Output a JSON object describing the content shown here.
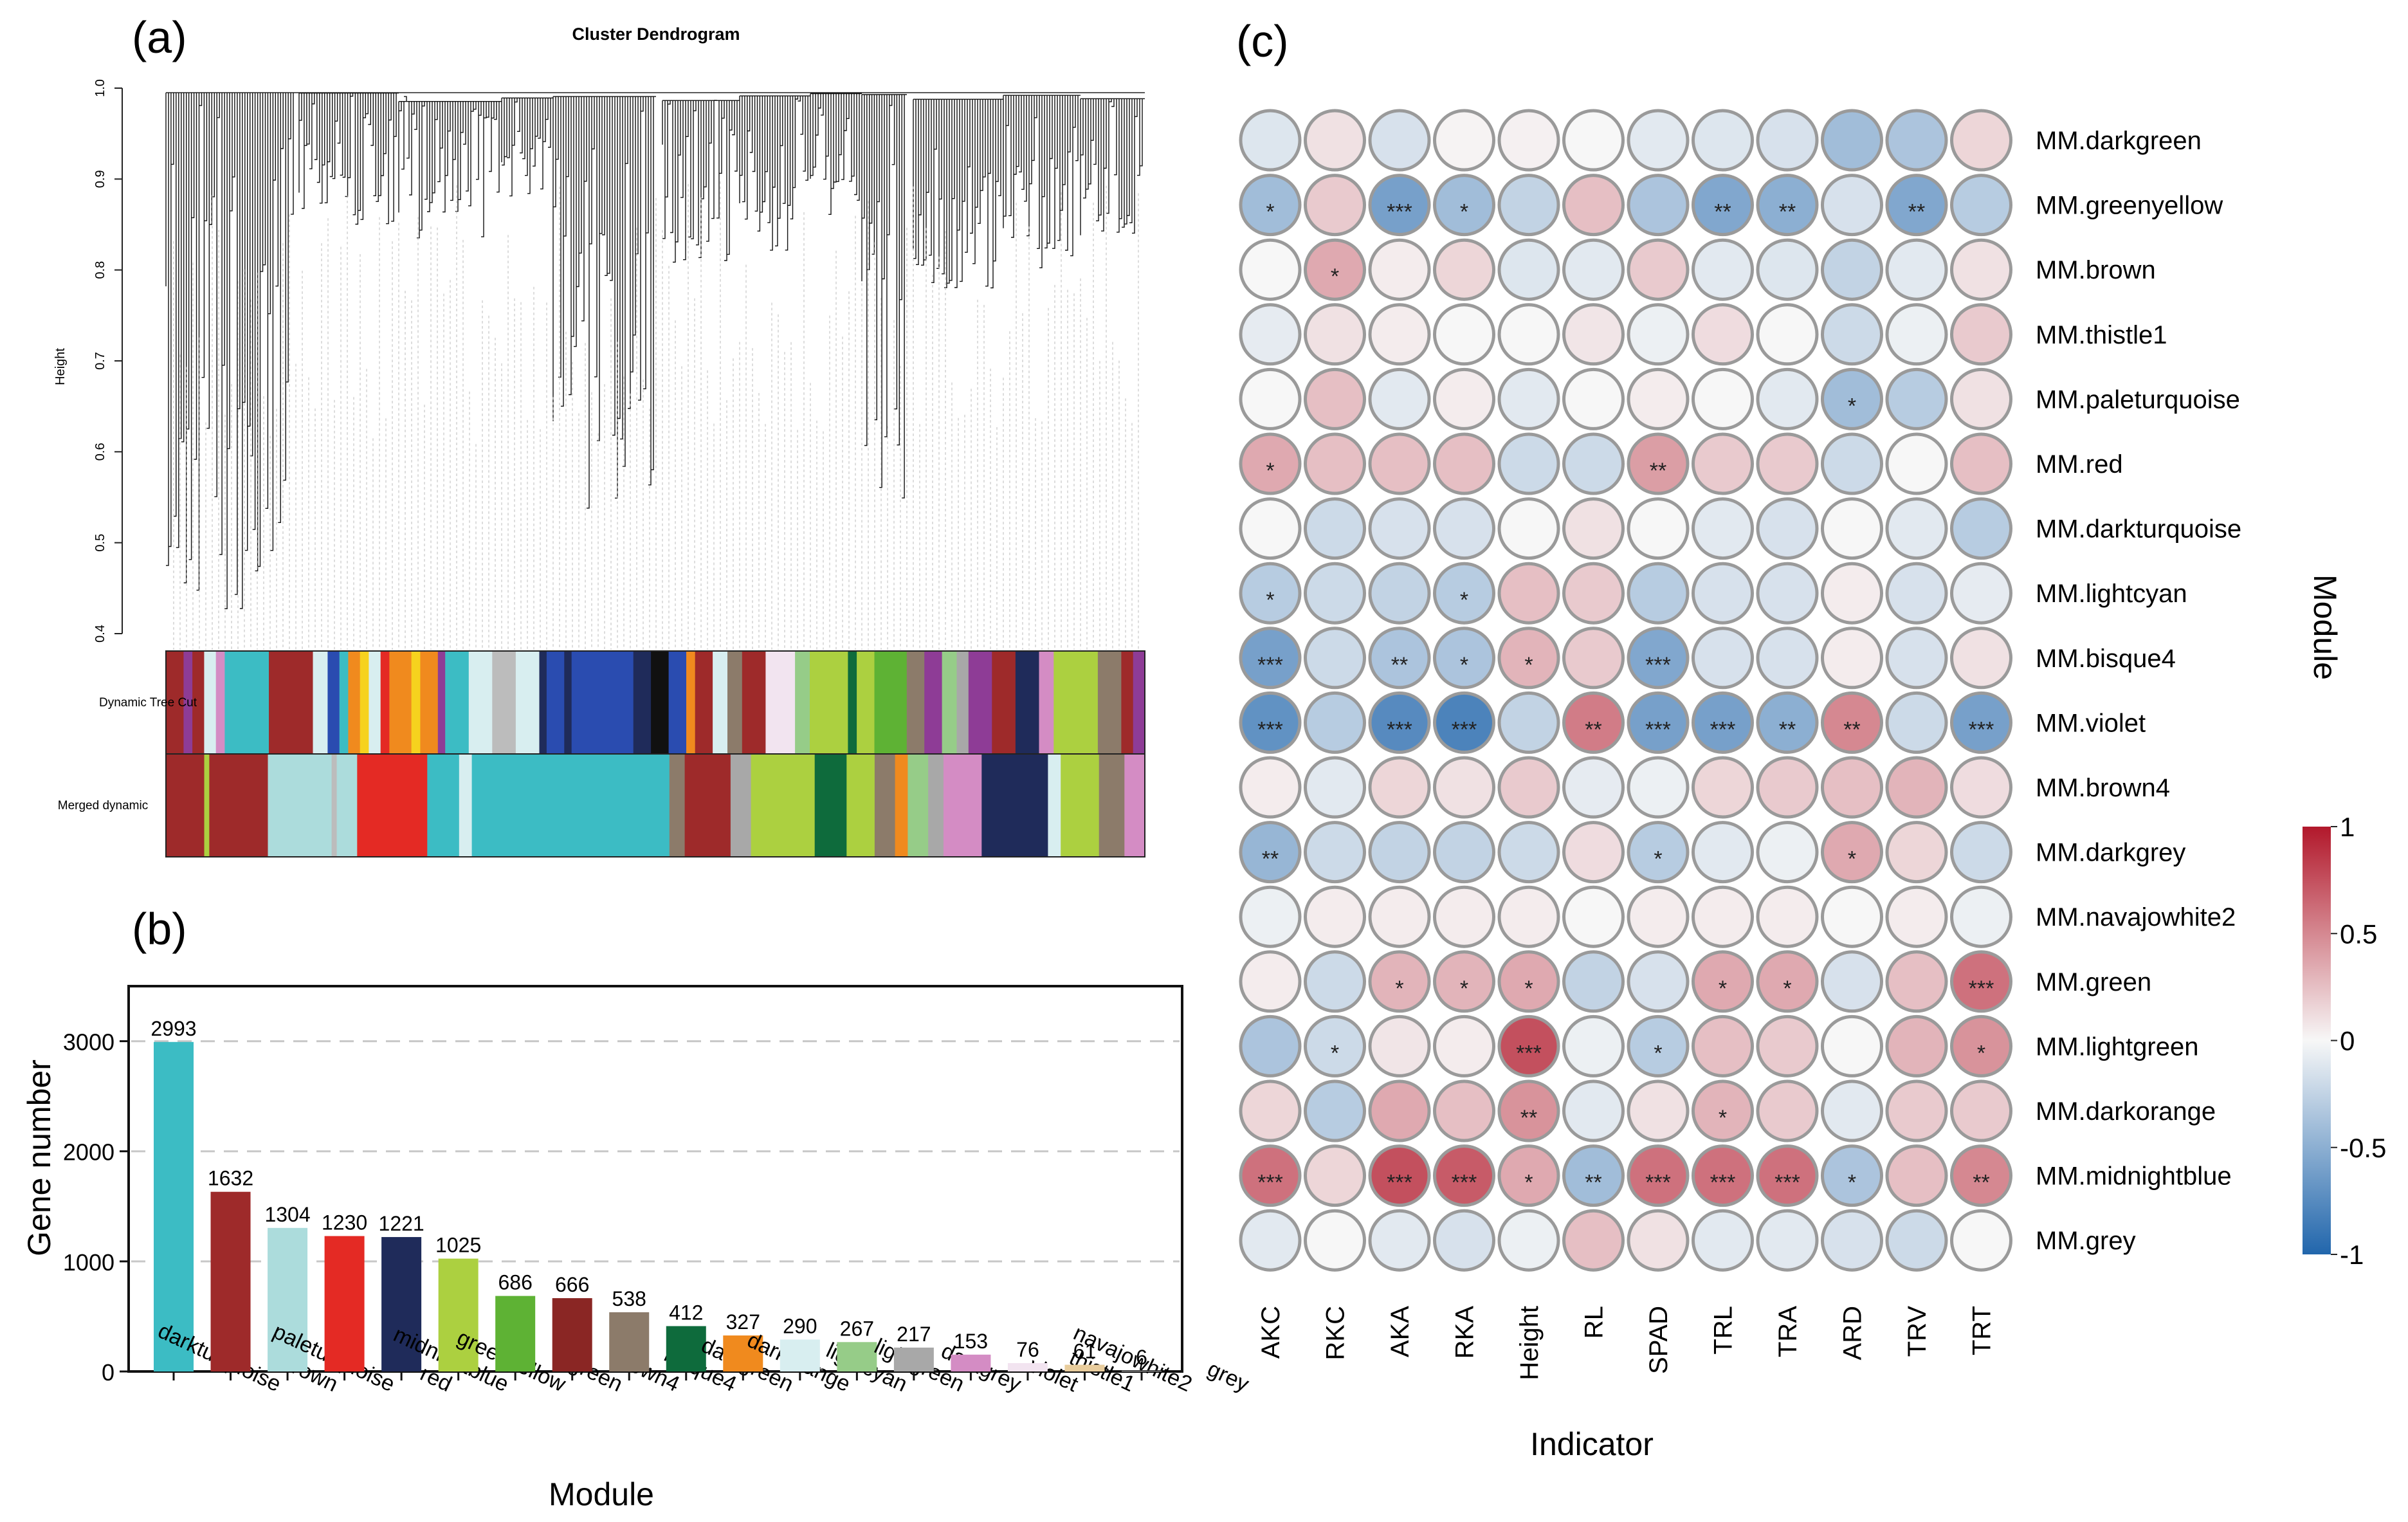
{
  "panel_labels": {
    "a": "(a)",
    "b": "(b)",
    "c": "(c)"
  },
  "colors": {
    "darkturquoise": "#3cbcc4",
    "brown": "#9e2a2a",
    "paleturquoise": "#acdcdc",
    "red": "#e42a24",
    "midnightblue": "#1f2b5a",
    "greenyellow": "#acd040",
    "green": "#5eb234",
    "brown4": "#8a2624",
    "bisque4": "#8c7b6a",
    "darkgreen": "#0e6b3c",
    "darkorange": "#f08a1e",
    "lightcyan": "#d8eef0",
    "lightgreen": "#96cc88",
    "darkgrey": "#a8a8a8",
    "violet": "#d48cc4",
    "thistle1": "#f2e4f0",
    "navajowhite2": "#e8cc9c",
    "grey": "#bcbcbc",
    "purple": "#8e3c96",
    "black": "#111111",
    "yellow": "#f6d21e",
    "blue": "#2a4cb0"
  },
  "chart_data": [
    {
      "id": "a",
      "type": "dendrogram",
      "title": "Cluster Dendrogram",
      "ylabel": "Height",
      "ylim": [
        0.4,
        1.0
      ],
      "yticks": [
        "0.4",
        "0.5",
        "0.6",
        "0.7",
        "0.8",
        "0.9",
        "1.0"
      ],
      "color_bars": [
        "Dynamic Tree Cut",
        "Merged dynamic"
      ],
      "merged_blocks": [
        {
          "module": "brown",
          "w": 3
        },
        {
          "module": "greenyellow",
          "w": 0.4
        },
        {
          "module": "brown",
          "w": 4.6
        },
        {
          "module": "paleturquoise",
          "w": 5
        },
        {
          "module": "grey",
          "w": 0.4
        },
        {
          "module": "paleturquoise",
          "w": 1.6
        },
        {
          "module": "red",
          "w": 5.5
        },
        {
          "module": "darkturquoise",
          "w": 2.5
        },
        {
          "module": "lightcyan",
          "w": 1
        },
        {
          "module": "darkturquoise",
          "w": 15.5
        },
        {
          "module": "bisque4",
          "w": 1.2
        },
        {
          "module": "brown",
          "w": 3.6
        },
        {
          "module": "darkgrey",
          "w": 1.6
        },
        {
          "module": "greenyellow",
          "w": 5
        },
        {
          "module": "darkgreen",
          "w": 2.5
        },
        {
          "module": "greenyellow",
          "w": 2.2
        },
        {
          "module": "bisque4",
          "w": 1.6
        },
        {
          "module": "darkorange",
          "w": 1
        },
        {
          "module": "lightgreen",
          "w": 1.6
        },
        {
          "module": "darkgrey",
          "w": 1.2
        },
        {
          "module": "violet",
          "w": 3
        },
        {
          "module": "midnightblue",
          "w": 5.2
        },
        {
          "module": "lightcyan",
          "w": 1
        },
        {
          "module": "greenyellow",
          "w": 3
        },
        {
          "module": "bisque4",
          "w": 2
        },
        {
          "module": "violet",
          "w": 1.6
        }
      ],
      "dynamic_blocks": [
        {
          "module": "brown",
          "w": 1.2
        },
        {
          "module": "purple",
          "w": 0.6
        },
        {
          "module": "brown",
          "w": 0.8
        },
        {
          "module": "lightcyan",
          "w": 0.8
        },
        {
          "module": "violet",
          "w": 0.6
        },
        {
          "module": "darkturquoise",
          "w": 3
        },
        {
          "module": "brown",
          "w": 3
        },
        {
          "module": "lightcyan",
          "w": 1
        },
        {
          "module": "blue",
          "w": 0.8
        },
        {
          "module": "darkturquoise",
          "w": 0.6
        },
        {
          "module": "darkorange",
          "w": 0.8
        },
        {
          "module": "yellow",
          "w": 0.6
        },
        {
          "module": "lightcyan",
          "w": 0.8
        },
        {
          "module": "red",
          "w": 0.6
        },
        {
          "module": "darkorange",
          "w": 1.5
        },
        {
          "module": "yellow",
          "w": 0.6
        },
        {
          "module": "darkorange",
          "w": 1.2
        },
        {
          "module": "purple",
          "w": 0.5
        },
        {
          "module": "darkturquoise",
          "w": 1.6
        },
        {
          "module": "lightcyan",
          "w": 1.6
        },
        {
          "module": "grey",
          "w": 1.6
        },
        {
          "module": "lightcyan",
          "w": 1.6
        },
        {
          "module": "midnightblue",
          "w": 0.5
        },
        {
          "module": "blue",
          "w": 1.2
        },
        {
          "module": "midnightblue",
          "w": 0.5
        },
        {
          "module": "blue",
          "w": 4.2
        },
        {
          "module": "midnightblue",
          "w": 1.2
        },
        {
          "module": "black",
          "w": 1.2
        },
        {
          "module": "blue",
          "w": 1.2
        },
        {
          "module": "darkorange",
          "w": 0.6
        },
        {
          "module": "brown",
          "w": 1.2
        },
        {
          "module": "lightcyan",
          "w": 1
        },
        {
          "module": "bisque4",
          "w": 1
        },
        {
          "module": "brown",
          "w": 1.6
        },
        {
          "module": "thistle1",
          "w": 2
        },
        {
          "module": "lightgreen",
          "w": 1
        },
        {
          "module": "greenyellow",
          "w": 2.6
        },
        {
          "module": "darkgreen",
          "w": 0.6
        },
        {
          "module": "greenyellow",
          "w": 1.2
        },
        {
          "module": "green",
          "w": 2.2
        },
        {
          "module": "bisque4",
          "w": 1.2
        },
        {
          "module": "purple",
          "w": 1.2
        },
        {
          "module": "lightgreen",
          "w": 1
        },
        {
          "module": "darkgrey",
          "w": 0.8
        },
        {
          "module": "purple",
          "w": 1.6
        },
        {
          "module": "brown",
          "w": 1.6
        },
        {
          "module": "midnightblue",
          "w": 1.6
        },
        {
          "module": "violet",
          "w": 1
        },
        {
          "module": "greenyellow",
          "w": 3
        },
        {
          "module": "bisque4",
          "w": 1.6
        },
        {
          "module": "brown",
          "w": 0.8
        },
        {
          "module": "purple",
          "w": 0.8
        }
      ]
    },
    {
      "id": "b",
      "type": "bar",
      "xlabel": "Module",
      "ylabel": "Gene number",
      "ylim": [
        0,
        3500
      ],
      "yticks": [
        0,
        1000,
        2000,
        3000
      ],
      "categories": [
        "darkturquoise",
        "brown",
        "paleturquoise",
        "red",
        "midnightblue",
        "greenyellow",
        "green",
        "brown4",
        "bisque4",
        "darkgreen",
        "darkorange",
        "lightcyan",
        "lightgreen",
        "darkgrey",
        "violet",
        "thistle1",
        "navajowhite2",
        "grey"
      ],
      "values": [
        2993,
        1632,
        1304,
        1230,
        1221,
        1025,
        686,
        666,
        538,
        412,
        327,
        290,
        267,
        217,
        153,
        76,
        61,
        6
      ],
      "value_labels": [
        "2993",
        "1632",
        "1304",
        "1230",
        "1221",
        "1025",
        "686",
        "666",
        "538",
        "412",
        "327",
        "290",
        "267",
        "217",
        "153",
        "76",
        "61",
        "6"
      ]
    },
    {
      "id": "c",
      "type": "heatmap",
      "xlabel": "Indicator",
      "ylabel": "Module",
      "columns": [
        "AKC",
        "RKC",
        "AKA",
        "RKA",
        "Height",
        "RL",
        "SPAD",
        "TRL",
        "TRA",
        "ARD",
        "TRV",
        "TRT"
      ],
      "rows": [
        "MM.darkgreen",
        "MM.greenyellow",
        "MM.brown",
        "MM.thistle1",
        "MM.paleturquoise",
        "MM.red",
        "MM.darkturquoise",
        "MM.lightcyan",
        "MM.bisque4",
        "MM.violet",
        "MM.brown4",
        "MM.darkgrey",
        "MM.navajowhite2",
        "MM.green",
        "MM.lightgreen",
        "MM.darkorange",
        "MM.midnightblue",
        "MM.grey"
      ],
      "values": [
        [
          -0.12,
          0.1,
          -0.15,
          0.02,
          0.03,
          0.0,
          -0.1,
          -0.12,
          -0.15,
          -0.4,
          -0.35,
          0.15
        ],
        [
          -0.4,
          0.2,
          -0.6,
          -0.4,
          -0.25,
          0.25,
          -0.35,
          -0.55,
          -0.5,
          -0.15,
          -0.55,
          -0.3
        ],
        [
          0.0,
          0.35,
          0.05,
          0.15,
          -0.12,
          -0.1,
          0.2,
          -0.1,
          -0.12,
          -0.25,
          -0.1,
          0.1
        ],
        [
          -0.08,
          0.1,
          0.05,
          0.0,
          0.0,
          0.08,
          -0.05,
          0.12,
          0.0,
          -0.2,
          -0.05,
          0.2
        ],
        [
          0.0,
          0.25,
          -0.1,
          0.05,
          -0.1,
          0.0,
          0.05,
          0.0,
          -0.1,
          -0.4,
          -0.3,
          0.1
        ],
        [
          0.35,
          0.25,
          0.25,
          0.25,
          -0.2,
          -0.2,
          0.4,
          0.2,
          0.2,
          -0.2,
          0.0,
          0.25
        ],
        [
          0.0,
          -0.2,
          -0.15,
          -0.15,
          0.0,
          0.1,
          0.0,
          -0.1,
          -0.15,
          0.0,
          -0.1,
          -0.3
        ],
        [
          -0.3,
          -0.2,
          -0.25,
          -0.3,
          0.25,
          0.2,
          -0.3,
          -0.15,
          -0.15,
          0.05,
          -0.15,
          -0.08
        ],
        [
          -0.6,
          -0.2,
          -0.35,
          -0.35,
          0.3,
          0.2,
          -0.55,
          -0.15,
          -0.15,
          0.05,
          -0.15,
          0.1
        ],
        [
          -0.7,
          -0.3,
          -0.75,
          -0.8,
          -0.25,
          0.55,
          -0.6,
          -0.6,
          -0.5,
          0.5,
          -0.2,
          -0.6
        ],
        [
          0.05,
          -0.1,
          0.15,
          0.1,
          0.2,
          -0.08,
          -0.05,
          0.15,
          0.2,
          0.25,
          0.3,
          0.12
        ],
        [
          -0.45,
          -0.2,
          -0.25,
          -0.25,
          -0.2,
          0.12,
          -0.3,
          -0.1,
          -0.05,
          0.35,
          0.15,
          -0.2
        ],
        [
          -0.05,
          0.05,
          0.05,
          0.05,
          0.05,
          0.0,
          0.05,
          0.05,
          0.05,
          0.0,
          0.05,
          -0.05
        ],
        [
          0.05,
          -0.2,
          0.3,
          0.3,
          0.35,
          -0.25,
          -0.15,
          0.35,
          0.35,
          -0.15,
          0.25,
          0.6
        ],
        [
          -0.35,
          -0.2,
          0.08,
          0.05,
          0.75,
          -0.05,
          -0.3,
          0.25,
          0.2,
          0.0,
          0.3,
          0.45
        ],
        [
          0.15,
          -0.3,
          0.35,
          0.25,
          0.45,
          -0.1,
          0.1,
          0.3,
          0.2,
          -0.1,
          0.2,
          0.2
        ],
        [
          0.6,
          0.15,
          0.75,
          0.7,
          0.35,
          -0.4,
          0.6,
          0.6,
          0.6,
          -0.35,
          0.25,
          0.5
        ],
        [
          -0.1,
          0.0,
          -0.1,
          -0.15,
          -0.05,
          0.25,
          0.1,
          -0.1,
          -0.1,
          -0.15,
          -0.2,
          0.0
        ]
      ],
      "significance": [
        [
          "",
          "",
          "",
          "",
          "",
          "",
          "",
          "",
          "",
          "",
          "",
          ""
        ],
        [
          "*",
          "",
          "***",
          "*",
          "",
          "",
          "",
          "**",
          "**",
          "",
          "**",
          ""
        ],
        [
          "",
          "*",
          "",
          "",
          "",
          "",
          "",
          "",
          "",
          "",
          "",
          ""
        ],
        [
          "",
          "",
          "",
          "",
          "",
          "",
          "",
          "",
          "",
          "",
          "",
          ""
        ],
        [
          "",
          "",
          "",
          "",
          "",
          "",
          "",
          "",
          "",
          "*",
          "",
          ""
        ],
        [
          "*",
          "",
          "",
          "",
          "",
          "",
          "**",
          "",
          "",
          "",
          "",
          ""
        ],
        [
          "",
          "",
          "",
          "",
          "",
          "",
          "",
          "",
          "",
          "",
          "",
          ""
        ],
        [
          "*",
          "",
          "",
          "*",
          "",
          "",
          "",
          "",
          "",
          "",
          "",
          ""
        ],
        [
          "***",
          "",
          "**",
          "*",
          "*",
          "",
          "***",
          "",
          "",
          "",
          "",
          ""
        ],
        [
          "***",
          "",
          "***",
          "***",
          "",
          "**",
          "***",
          "***",
          "**",
          "**",
          "",
          "***"
        ],
        [
          "",
          "",
          "",
          "",
          "",
          "",
          "",
          "",
          "",
          "",
          "",
          ""
        ],
        [
          "**",
          "",
          "",
          "",
          "",
          "",
          "*",
          "",
          "",
          "*",
          "",
          ""
        ],
        [
          "",
          "",
          "",
          "",
          "",
          "",
          "",
          "",
          "",
          "",
          "",
          ""
        ],
        [
          "",
          "",
          "*",
          "*",
          "*",
          "",
          "",
          "*",
          "*",
          "",
          "",
          "***"
        ],
        [
          "",
          "*",
          "",
          "",
          "***",
          "",
          "*",
          "",
          "",
          "",
          "",
          "*"
        ],
        [
          "",
          "",
          "",
          "",
          "**",
          "",
          "",
          "*",
          "",
          "",
          "",
          ""
        ],
        [
          "***",
          "",
          "***",
          "***",
          "*",
          "**",
          "***",
          "***",
          "***",
          "*",
          "",
          "**"
        ],
        [
          "",
          "",
          "",
          "",
          "",
          "",
          "",
          "",
          "",
          "",
          "",
          ""
        ]
      ],
      "colorbar": {
        "range": [
          -1,
          1
        ],
        "ticks": [
          "1",
          "0.5",
          "0",
          "-0.5",
          "-1"
        ]
      }
    }
  ]
}
